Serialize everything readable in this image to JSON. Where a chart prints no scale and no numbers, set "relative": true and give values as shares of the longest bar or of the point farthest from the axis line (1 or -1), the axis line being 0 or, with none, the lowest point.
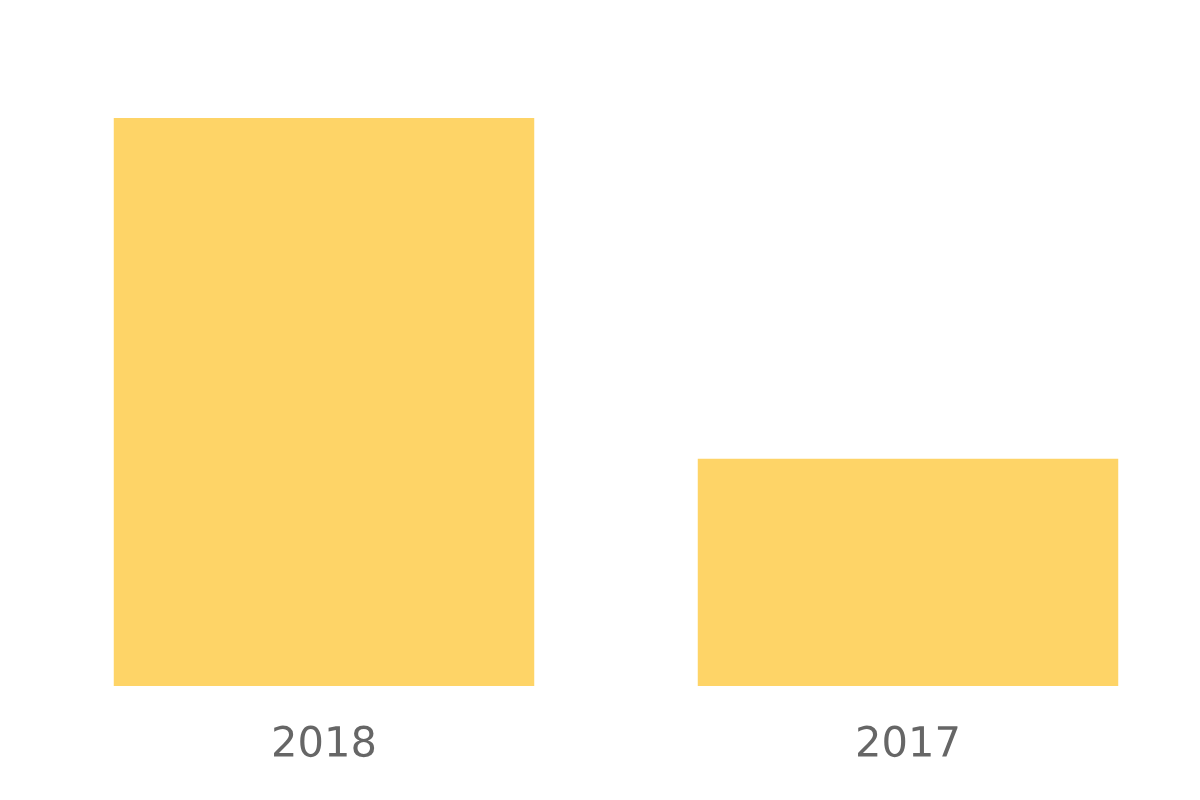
{
  "chart_data": {
    "type": "bar",
    "relative": true,
    "categories": [
      "2018",
      "2017"
    ],
    "values": [
      1,
      0.4
    ],
    "color": "#fed467",
    "grid": false,
    "legend": false
  }
}
